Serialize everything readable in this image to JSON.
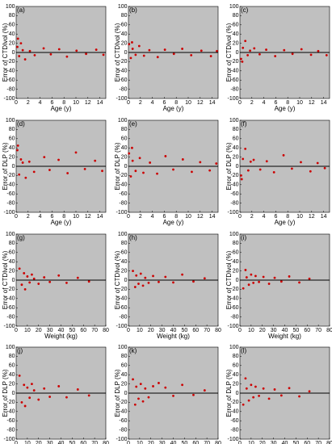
{
  "chart_data": [
    {
      "type": "scatter",
      "panel_label": "(a)",
      "xlabel": "Age (y)",
      "ylabel": "Error of CTDIvol (%)",
      "xlim": [
        0,
        15
      ],
      "ylim": [
        -100,
        100
      ],
      "xticks": [
        0,
        2,
        4,
        6,
        8,
        10,
        12,
        14
      ],
      "yticks": [
        -100,
        -80,
        -60,
        -40,
        -20,
        0,
        20,
        40,
        60,
        80,
        100
      ],
      "hline": 0,
      "color": "#cc0000",
      "background": "#c0c0c0",
      "x": [
        0.2,
        0.5,
        0.8,
        1.1,
        1.5,
        0.3,
        2.3,
        3.1,
        4.6,
        5.8,
        7.2,
        8.5,
        10.1,
        11.7,
        13.4,
        14.6
      ],
      "y": [
        12,
        -8,
        20,
        5,
        -15,
        30,
        3,
        -6,
        9,
        -4,
        7,
        -9,
        4,
        -3,
        6,
        -5
      ]
    },
    {
      "type": "scatter",
      "panel_label": "(b)",
      "xlabel": "Age (y)",
      "ylabel": "Error of CTDIvol (%)",
      "xlim": [
        0,
        15
      ],
      "ylim": [
        -100,
        100
      ],
      "xticks": [
        0,
        2,
        4,
        6,
        8,
        10,
        12,
        14
      ],
      "yticks": [
        -100,
        -80,
        -60,
        -40,
        -20,
        0,
        20,
        40,
        60,
        80,
        100
      ],
      "hline": 0,
      "color": "#cc0000",
      "background": "#c0c0c0",
      "x": [
        0.1,
        0.4,
        0.7,
        1.2,
        1.8,
        0.6,
        2.6,
        3.5,
        4.9,
        6.1,
        7.6,
        9.0,
        10.5,
        12.2,
        13.8,
        14.8
      ],
      "y": [
        18,
        -12,
        8,
        -5,
        14,
        22,
        -7,
        5,
        -10,
        6,
        -3,
        8,
        -6,
        4,
        -8,
        3
      ]
    },
    {
      "type": "scatter",
      "panel_label": "(c)",
      "xlabel": "Age (y)",
      "ylabel": "Error of CTDIvol (%)",
      "xlim": [
        0,
        15
      ],
      "ylim": [
        -100,
        100
      ],
      "xticks": [
        0,
        2,
        4,
        6,
        8,
        10,
        12,
        14
      ],
      "yticks": [
        -100,
        -80,
        -60,
        -40,
        -20,
        0,
        20,
        40,
        60,
        80,
        100
      ],
      "hline": 0,
      "color": "#cc0000",
      "background": "#c0c0c0",
      "x": [
        0.2,
        0.5,
        0.9,
        1.3,
        1.7,
        0.4,
        2.4,
        3.3,
        4.4,
        5.9,
        7.4,
        8.8,
        10.3,
        11.9,
        13.1,
        14.5
      ],
      "y": [
        -14,
        10,
        25,
        -6,
        4,
        -20,
        9,
        -4,
        6,
        -8,
        5,
        -3,
        7,
        -5,
        3,
        -6
      ]
    },
    {
      "type": "scatter",
      "panel_label": "(d)",
      "xlabel": "Age (y)",
      "ylabel": "Error of DLP (%)",
      "xlim": [
        0,
        15
      ],
      "ylim": [
        -100,
        100
      ],
      "xticks": [
        0,
        2,
        4,
        6,
        8,
        10,
        12,
        14
      ],
      "yticks": [
        -100,
        -80,
        -60,
        -40,
        -20,
        0,
        20,
        40,
        60,
        80,
        100
      ],
      "hline": 0,
      "color": "#cc0000",
      "background": "#c0c0c0",
      "x": [
        0.2,
        0.5,
        0.8,
        1.1,
        1.6,
        0.3,
        2.2,
        3.0,
        4.7,
        5.6,
        7.1,
        8.6,
        10.0,
        11.5,
        13.2,
        14.4
      ],
      "y": [
        35,
        -18,
        15,
        8,
        -25,
        45,
        10,
        -12,
        20,
        -8,
        14,
        -15,
        30,
        -6,
        12,
        -10
      ]
    },
    {
      "type": "scatter",
      "panel_label": "(e)",
      "xlabel": "Age (y)",
      "ylabel": "Error of DLP (%)",
      "xlim": [
        0,
        15
      ],
      "ylim": [
        -100,
        100
      ],
      "xticks": [
        0,
        2,
        4,
        6,
        8,
        10,
        12,
        14
      ],
      "yticks": [
        -100,
        -80,
        -60,
        -40,
        -20,
        0,
        20,
        40,
        60,
        80,
        100
      ],
      "hline": 0,
      "color": "#cc0000",
      "background": "#c0c0c0",
      "x": [
        0.1,
        0.4,
        0.7,
        1.2,
        1.9,
        0.6,
        2.5,
        3.6,
        4.8,
        6.2,
        7.5,
        9.1,
        10.6,
        12.0,
        13.6,
        14.7
      ],
      "y": [
        28,
        -22,
        12,
        -10,
        18,
        40,
        -14,
        8,
        -16,
        22,
        -7,
        15,
        -12,
        9,
        -9,
        6
      ]
    },
    {
      "type": "scatter",
      "panel_label": "(f)",
      "xlabel": "Age (y)",
      "ylabel": "Error of DLP (%)",
      "xlim": [
        0,
        15
      ],
      "ylim": [
        -100,
        100
      ],
      "xticks": [
        0,
        2,
        4,
        6,
        8,
        10,
        12,
        14
      ],
      "yticks": [
        -100,
        -80,
        -60,
        -40,
        -20,
        0,
        20,
        40,
        60,
        80,
        100
      ],
      "hline": 0,
      "color": "#cc0000",
      "background": "#c0c0c0",
      "x": [
        0.2,
        0.5,
        0.9,
        1.4,
        1.8,
        0.3,
        2.3,
        3.4,
        4.5,
        5.7,
        7.3,
        8.7,
        10.2,
        11.8,
        13.0,
        14.2
      ],
      "y": [
        -20,
        16,
        38,
        -9,
        10,
        -28,
        14,
        -7,
        11,
        -13,
        24,
        -5,
        9,
        -11,
        7,
        -4
      ]
    },
    {
      "type": "scatter",
      "panel_label": "(g)",
      "xlabel": "Weight (kg)",
      "ylabel": "Error of CTDIvol (%)",
      "xlim": [
        0,
        80
      ],
      "ylim": [
        -100,
        100
      ],
      "xticks": [
        0,
        10,
        20,
        30,
        40,
        50,
        60,
        70,
        80
      ],
      "yticks": [
        -100,
        -80,
        -60,
        -40,
        -20,
        0,
        20,
        40,
        60,
        80,
        100
      ],
      "hline": 0,
      "color": "#cc0000",
      "background": "#c0c0c0",
      "x": [
        3,
        5,
        7,
        8,
        10,
        12,
        14,
        16,
        20,
        25,
        30,
        38,
        45,
        55,
        65
      ],
      "y": [
        25,
        -10,
        15,
        -20,
        8,
        -5,
        12,
        3,
        -8,
        6,
        -4,
        10,
        -6,
        5,
        -3
      ]
    },
    {
      "type": "scatter",
      "panel_label": "(h)",
      "xlabel": "Weight (kg)",
      "ylabel": "Error of CTDIvol (%)",
      "xlim": [
        0,
        80
      ],
      "ylim": [
        -100,
        100
      ],
      "xticks": [
        0,
        10,
        20,
        30,
        40,
        50,
        60,
        70,
        80
      ],
      "yticks": [
        -100,
        -80,
        -60,
        -40,
        -20,
        0,
        20,
        40,
        60,
        80,
        100
      ],
      "hline": 0,
      "color": "#cc0000",
      "background": "#c0c0c0",
      "x": [
        4,
        6,
        7,
        9,
        11,
        13,
        15,
        18,
        22,
        27,
        33,
        40,
        48,
        58,
        68
      ],
      "y": [
        20,
        -15,
        10,
        -8,
        14,
        -12,
        5,
        -6,
        9,
        -4,
        7,
        -5,
        12,
        -3,
        4
      ]
    },
    {
      "type": "scatter",
      "panel_label": "(i)",
      "xlabel": "Weight (kg)",
      "ylabel": "Error of CTDIvol (%)",
      "xlim": [
        0,
        80
      ],
      "ylim": [
        -100,
        100
      ],
      "xticks": [
        0,
        10,
        20,
        30,
        40,
        50,
        60,
        70,
        80
      ],
      "yticks": [
        -100,
        -80,
        -60,
        -40,
        -20,
        0,
        20,
        40,
        60,
        80,
        100
      ],
      "hline": 0,
      "color": "#cc0000",
      "background": "#c0c0c0",
      "x": [
        3,
        5,
        6,
        8,
        10,
        12,
        14,
        17,
        21,
        26,
        31,
        37,
        44,
        53,
        62
      ],
      "y": [
        -18,
        22,
        6,
        -10,
        12,
        -6,
        9,
        -4,
        7,
        -8,
        5,
        -3,
        8,
        -5,
        3
      ]
    },
    {
      "type": "scatter",
      "panel_label": "(j)",
      "xlabel": "Weight (kg)",
      "ylabel": "Error of DLP (%)",
      "xlim": [
        0,
        80
      ],
      "ylim": [
        -100,
        100
      ],
      "xticks": [
        0,
        10,
        20,
        30,
        40,
        50,
        60,
        70,
        80
      ],
      "yticks": [
        -100,
        -80,
        -60,
        -40,
        -20,
        0,
        20,
        40,
        60,
        80,
        100
      ],
      "hline": 0,
      "color": "#cc0000",
      "background": "#c0c0c0",
      "x": [
        3,
        5,
        7,
        8,
        10,
        12,
        14,
        16,
        20,
        25,
        30,
        38,
        45,
        55,
        65
      ],
      "y": [
        38,
        -20,
        18,
        -28,
        12,
        -10,
        20,
        6,
        -14,
        10,
        -8,
        15,
        -9,
        8,
        -5
      ]
    },
    {
      "type": "scatter",
      "panel_label": "(k)",
      "xlabel": "Weight (kg)",
      "ylabel": "Error of DLP (%)",
      "xlim": [
        0,
        80
      ],
      "ylim": [
        -100,
        100
      ],
      "xticks": [
        0,
        10,
        20,
        30,
        40,
        50,
        60,
        70,
        80
      ],
      "yticks": [
        -100,
        -80,
        -60,
        -40,
        -20,
        0,
        20,
        40,
        60,
        80,
        100
      ],
      "hline": 0,
      "color": "#cc0000",
      "background": "#c0c0c0",
      "x": [
        4,
        6,
        7,
        9,
        11,
        13,
        15,
        18,
        22,
        27,
        33,
        40,
        48,
        58,
        68
      ],
      "y": [
        30,
        -25,
        14,
        -12,
        20,
        -18,
        10,
        -9,
        15,
        22,
        12,
        -6,
        18,
        -4,
        6
      ]
    },
    {
      "type": "scatter",
      "panel_label": "(l)",
      "xlabel": "Weight (kg)",
      "ylabel": "Error of DLP (%)",
      "xlim": [
        0,
        80
      ],
      "ylim": [
        -100,
        100
      ],
      "xticks": [
        0,
        10,
        20,
        30,
        40,
        50,
        60,
        70,
        80
      ],
      "yticks": [
        -100,
        -80,
        -60,
        -40,
        -20,
        0,
        20,
        40,
        60,
        80,
        100
      ],
      "hline": 0,
      "color": "#cc0000",
      "background": "#c0c0c0",
      "x": [
        3,
        5,
        6,
        8,
        10,
        12,
        14,
        17,
        21,
        26,
        31,
        37,
        44,
        53,
        62
      ],
      "y": [
        -25,
        32,
        10,
        -16,
        18,
        -9,
        14,
        -6,
        10,
        -12,
        8,
        -5,
        11,
        -7,
        4
      ]
    }
  ]
}
